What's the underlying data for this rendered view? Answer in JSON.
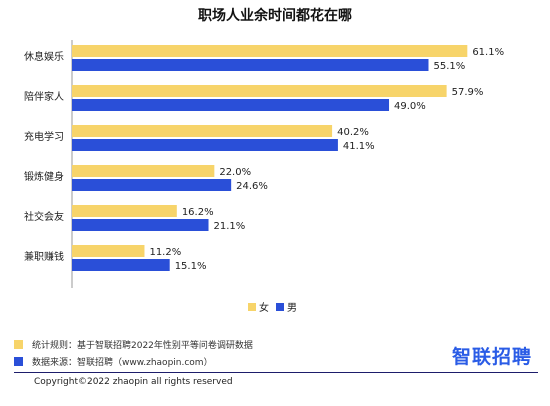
{
  "chart_data": {
    "type": "bar",
    "orientation": "horizontal",
    "title": "职场人业余时间都花在哪",
    "categories": [
      "休息娱乐",
      "陪伴家人",
      "充电学习",
      "锻炼健身",
      "社交会友",
      "兼职赚钱"
    ],
    "series": [
      {
        "name": "女",
        "color": "#f7d46a",
        "values": [
          61.1,
          57.9,
          40.2,
          22.0,
          16.2,
          11.2
        ],
        "labels": [
          "61.1%",
          "57.9%",
          "40.2%",
          "22.0%",
          "16.2%",
          "11.2%"
        ]
      },
      {
        "name": "男",
        "color": "#2a4fd8",
        "values": [
          55.1,
          49.0,
          41.1,
          24.6,
          21.1,
          15.1
        ],
        "labels": [
          "55.1%",
          "49.0%",
          "41.1%",
          "24.6%",
          "21.1%",
          "15.1%"
        ]
      }
    ],
    "xlim": [
      0,
      70
    ],
    "grid": false,
    "legend_position": "bottom-center"
  },
  "footer": {
    "note_rule": "统计规则：基于智联招聘2022年性别平等问卷调研数据",
    "note_source": "数据来源：智联招聘（www.zhaopin.com）",
    "brand": "智联招聘",
    "copyright": "Copyright©2022 zhaopin all rights reserved"
  },
  "colors": {
    "female": "#f7d46a",
    "male": "#2a4fd8",
    "brand": "#2a5ce6"
  }
}
